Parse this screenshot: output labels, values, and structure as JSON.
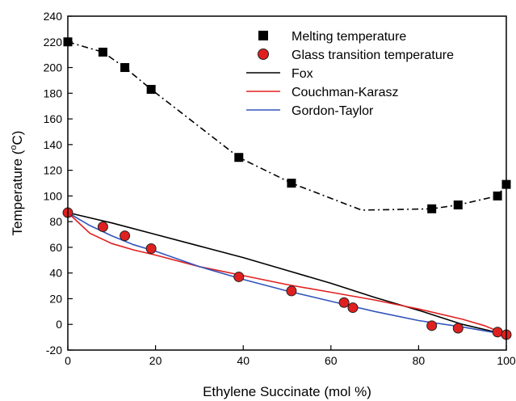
{
  "chart_data": {
    "type": "scatter",
    "xlabel": "Ethylene Succinate (mol %)",
    "ylabel_main": "Temperature (",
    "ylabel_sup": "o",
    "ylabel_end": "C)",
    "xlim": [
      0,
      100
    ],
    "ylim": [
      -20,
      240
    ],
    "x_ticks": [
      0,
      20,
      40,
      60,
      80,
      100
    ],
    "y_ticks": [
      -20,
      0,
      20,
      40,
      60,
      80,
      100,
      120,
      140,
      160,
      180,
      200,
      220,
      240
    ],
    "grid": false,
    "legend_position": "top-right",
    "series": [
      {
        "name": "Melting temperature",
        "kind": "markers",
        "marker": "square",
        "color": "#000000",
        "points": [
          [
            0,
            220
          ],
          [
            8,
            212
          ],
          [
            13,
            200
          ],
          [
            19,
            183
          ],
          [
            39,
            130
          ],
          [
            51,
            110
          ],
          [
            83,
            90
          ],
          [
            89,
            93
          ],
          [
            98,
            100
          ],
          [
            100,
            109
          ]
        ]
      },
      {
        "name": "Melting temperature trend",
        "kind": "line",
        "dash": "dashdot",
        "color": "#000000",
        "in_legend": false,
        "points": [
          [
            0,
            220
          ],
          [
            8,
            212
          ],
          [
            13,
            200
          ],
          [
            19,
            183
          ],
          [
            39,
            130
          ],
          [
            51,
            110
          ],
          [
            67,
            89
          ],
          [
            83,
            90
          ],
          [
            89,
            93
          ],
          [
            98,
            100
          ],
          [
            100,
            109
          ]
        ]
      },
      {
        "name": "Glass transition temperature",
        "kind": "markers",
        "marker": "circle",
        "color": "#e02020",
        "points": [
          [
            0,
            87
          ],
          [
            8,
            76
          ],
          [
            13,
            69
          ],
          [
            19,
            59
          ],
          [
            39,
            37
          ],
          [
            51,
            26
          ],
          [
            63,
            17
          ],
          [
            65,
            13
          ],
          [
            83,
            -1
          ],
          [
            89,
            -3
          ],
          [
            98,
            -6
          ],
          [
            100,
            -8
          ]
        ]
      },
      {
        "name": "Fox",
        "kind": "line",
        "color": "#000000",
        "points": [
          [
            0,
            87
          ],
          [
            10,
            79
          ],
          [
            20,
            70
          ],
          [
            30,
            61
          ],
          [
            40,
            52
          ],
          [
            50,
            42
          ],
          [
            60,
            32
          ],
          [
            70,
            21
          ],
          [
            80,
            11
          ],
          [
            90,
            0
          ],
          [
            100,
            -8
          ]
        ]
      },
      {
        "name": "Couchman-Karasz",
        "kind": "line",
        "color": "#e02020",
        "points": [
          [
            0,
            87
          ],
          [
            5,
            71
          ],
          [
            10,
            63
          ],
          [
            15,
            58
          ],
          [
            20,
            54
          ],
          [
            30,
            45
          ],
          [
            40,
            38
          ],
          [
            50,
            31
          ],
          [
            60,
            25
          ],
          [
            70,
            19
          ],
          [
            80,
            12
          ],
          [
            90,
            4
          ],
          [
            95,
            -1
          ],
          [
            100,
            -8
          ]
        ]
      },
      {
        "name": "Gordon-Taylor",
        "kind": "line",
        "color": "#3355bb",
        "points": [
          [
            0,
            87
          ],
          [
            5,
            77
          ],
          [
            10,
            69
          ],
          [
            15,
            62
          ],
          [
            20,
            57
          ],
          [
            30,
            45
          ],
          [
            40,
            35
          ],
          [
            50,
            26
          ],
          [
            60,
            18
          ],
          [
            70,
            10
          ],
          [
            80,
            3
          ],
          [
            90,
            -2
          ],
          [
            100,
            -8
          ]
        ]
      }
    ],
    "legend": [
      {
        "label": "Melting temperature",
        "symbol": "square",
        "color": "#000000"
      },
      {
        "label": "Glass transition temperature",
        "symbol": "circle",
        "color": "#e02020"
      },
      {
        "label": "Fox",
        "symbol": "line",
        "color": "#000000"
      },
      {
        "label": "Couchman-Karasz",
        "symbol": "line",
        "color": "#e02020"
      },
      {
        "label": "Gordon-Taylor",
        "symbol": "line",
        "color": "#3355bb"
      }
    ]
  }
}
